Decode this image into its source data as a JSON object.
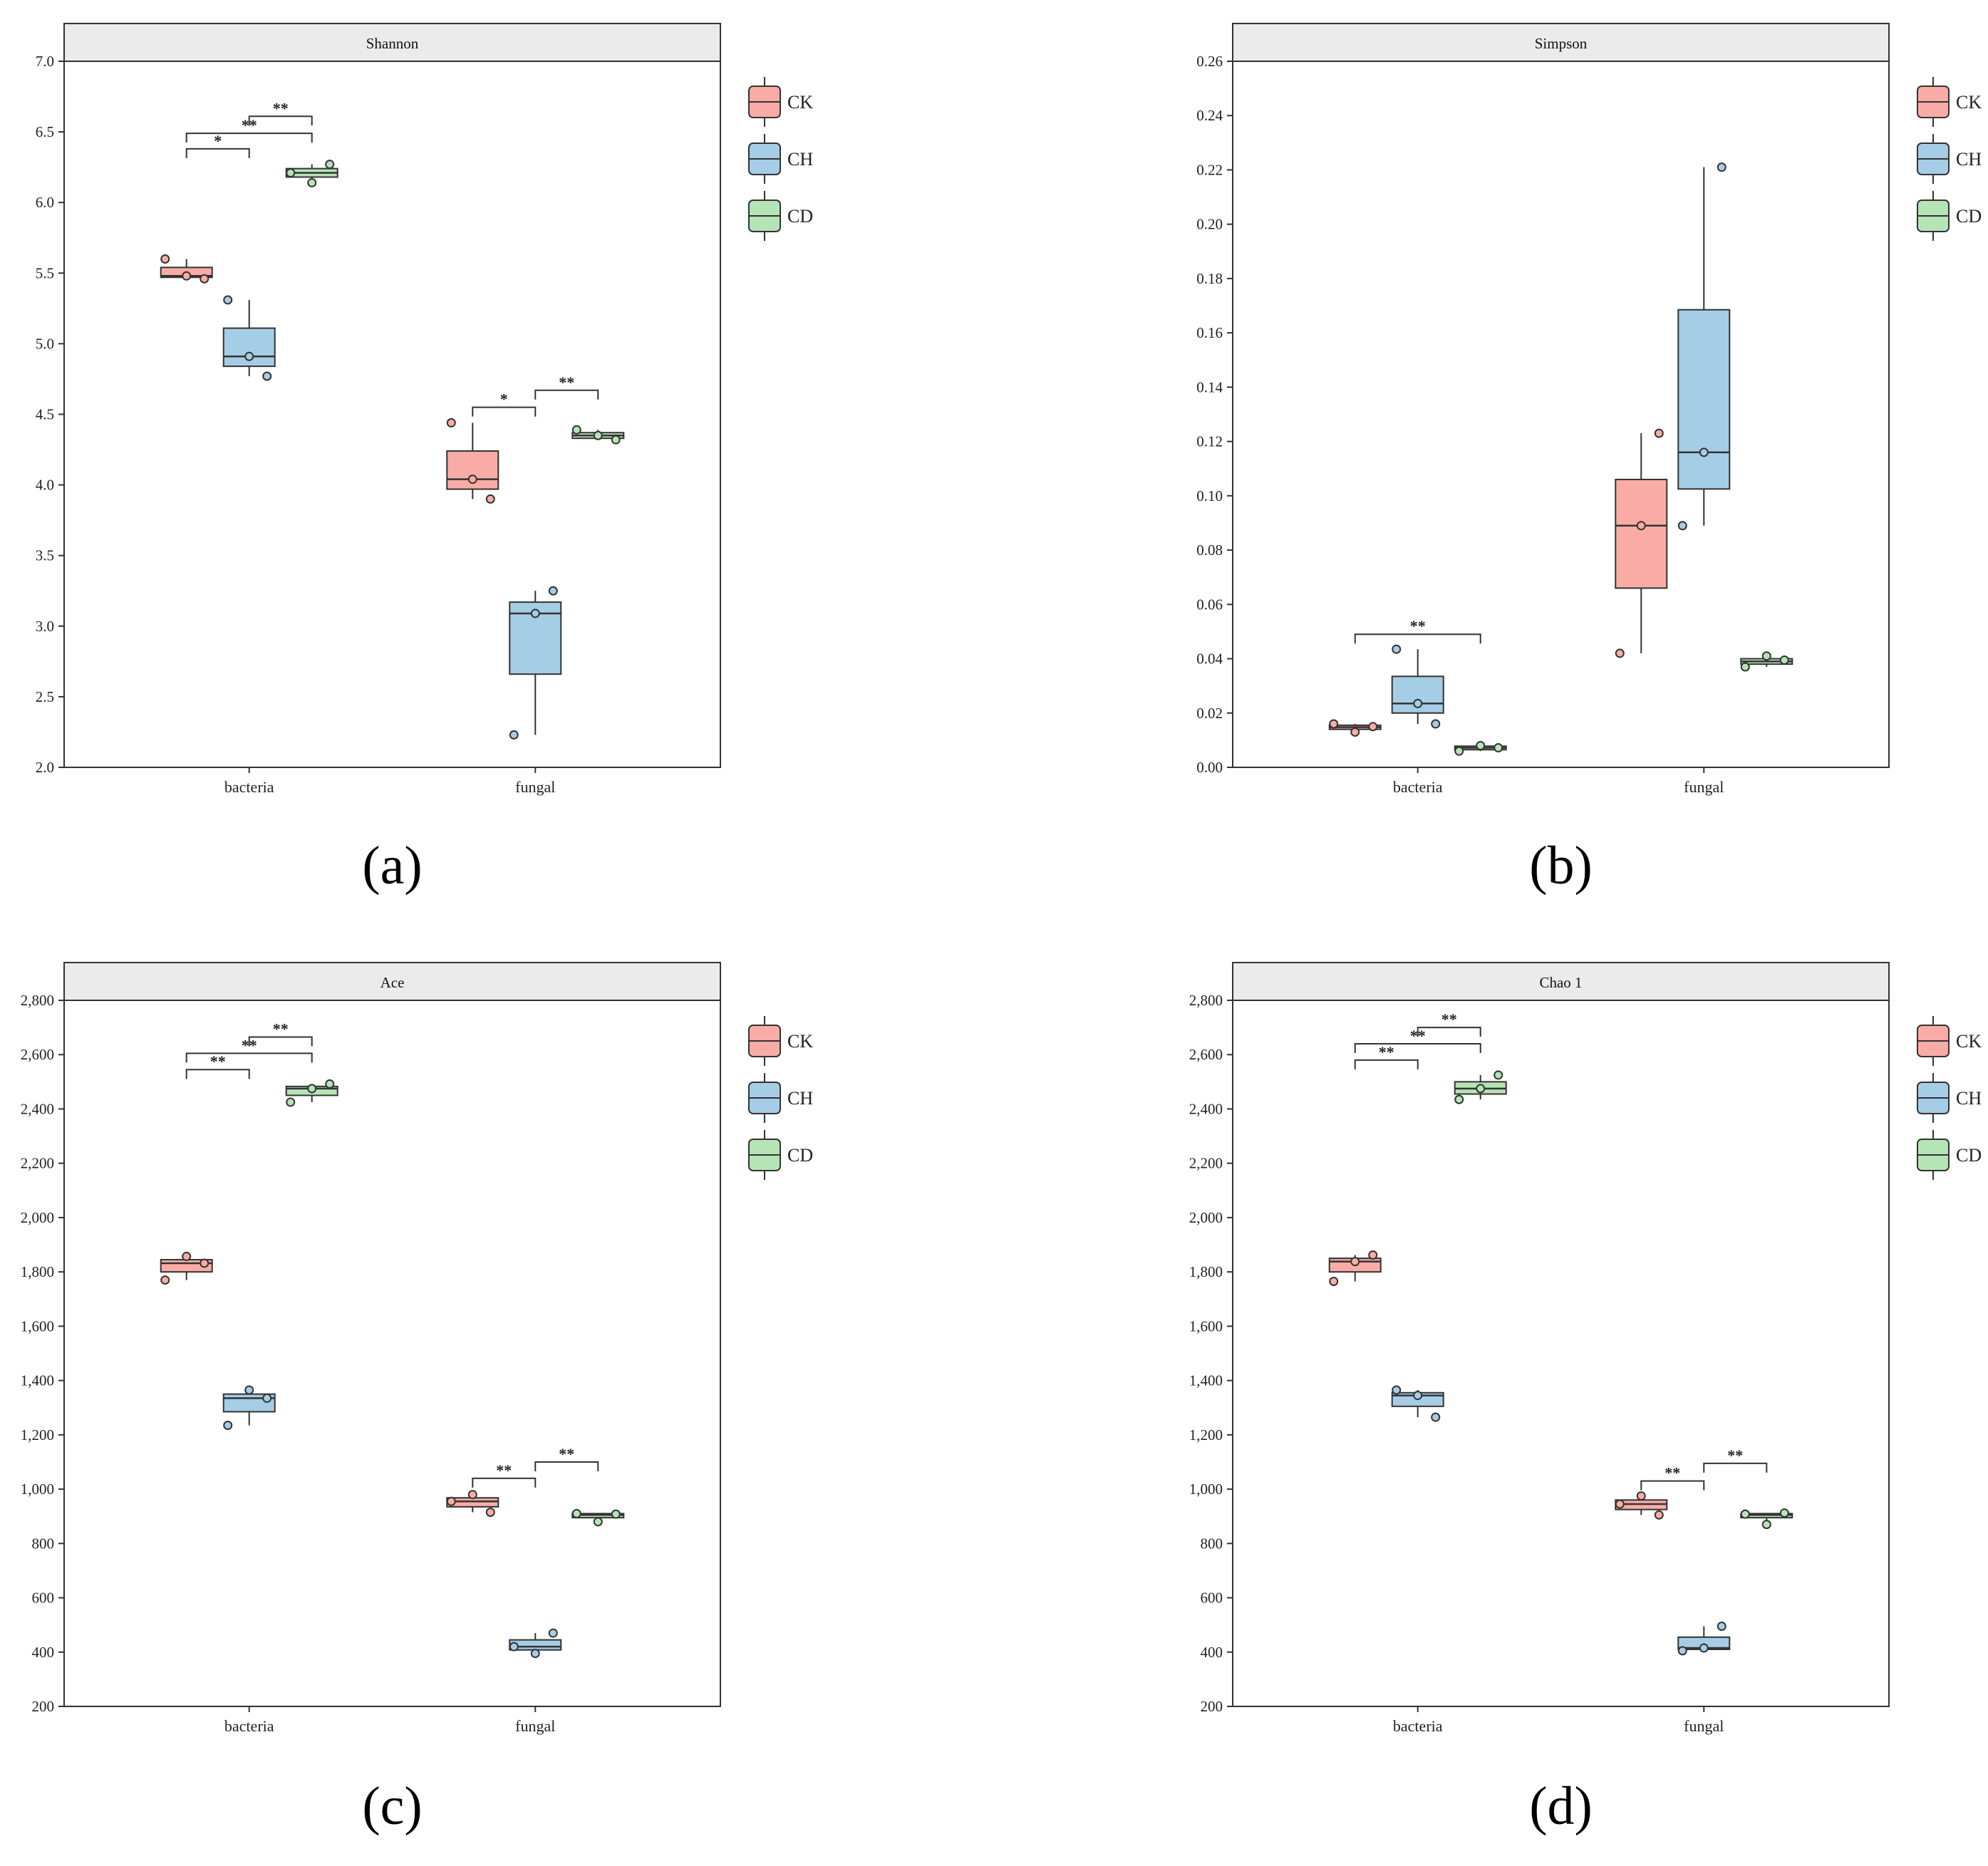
{
  "palette": {
    "CK": "#f9aca6",
    "CH": "#a6cde6",
    "CD": "#b5e5b5",
    "outline": "#333333",
    "header": "#ebebeb"
  },
  "chart_data": [
    {
      "type": "box",
      "panel_label": "(a)",
      "title": "Shannon",
      "categories": [
        "bacteria",
        "fungal"
      ],
      "ylim": [
        2.0,
        7.0
      ],
      "yticks": [
        2.0,
        2.5,
        3.0,
        3.5,
        4.0,
        4.5,
        5.0,
        5.5,
        6.0,
        6.5,
        7.0
      ],
      "ytick_labels": [
        "2.0",
        "2.5",
        "3.0",
        "3.5",
        "4.0",
        "4.5",
        "5.0",
        "5.5",
        "6.0",
        "6.5",
        "7.0"
      ],
      "legend": [
        "CK",
        "CH",
        "CD"
      ],
      "series": [
        {
          "name": "CK",
          "boxes": [
            {
              "min": 5.46,
              "q1": 5.47,
              "median": 5.48,
              "q3": 5.54,
              "max": 5.6,
              "points": [
                5.6,
                5.48,
                5.46
              ]
            },
            {
              "min": 3.9,
              "q1": 3.97,
              "median": 4.04,
              "q3": 4.24,
              "max": 4.44,
              "points": [
                4.44,
                4.04,
                3.9
              ]
            }
          ]
        },
        {
          "name": "CH",
          "boxes": [
            {
              "min": 4.77,
              "q1": 4.84,
              "median": 4.91,
              "q3": 5.11,
              "max": 5.31,
              "points": [
                5.31,
                4.91,
                4.77
              ]
            },
            {
              "min": 2.23,
              "q1": 2.66,
              "median": 3.09,
              "q3": 3.17,
              "max": 3.25,
              "points": [
                2.23,
                3.09,
                3.25
              ]
            }
          ]
        },
        {
          "name": "CD",
          "boxes": [
            {
              "min": 6.14,
              "q1": 6.18,
              "median": 6.21,
              "q3": 6.24,
              "max": 6.27,
              "points": [
                6.21,
                6.14,
                6.27
              ]
            },
            {
              "min": 4.32,
              "q1": 4.33,
              "median": 4.35,
              "q3": 4.37,
              "max": 4.39,
              "points": [
                4.39,
                4.35,
                4.32
              ]
            }
          ]
        }
      ],
      "significance": [
        {
          "category": 0,
          "from": "CK",
          "to": "CH",
          "y": 6.38,
          "label": "*"
        },
        {
          "category": 0,
          "from": "CK",
          "to": "CD",
          "y": 6.49,
          "label": "**"
        },
        {
          "category": 0,
          "from": "CH",
          "to": "CD",
          "y": 6.61,
          "label": "**"
        },
        {
          "category": 1,
          "from": "CK",
          "to": "CH",
          "y": 4.55,
          "label": "*"
        },
        {
          "category": 1,
          "from": "CH",
          "to": "CD",
          "y": 4.67,
          "label": "**"
        }
      ]
    },
    {
      "type": "box",
      "panel_label": "(b)",
      "title": "Simpson",
      "categories": [
        "bacteria",
        "fungal"
      ],
      "ylim": [
        0.0,
        0.26
      ],
      "yticks": [
        0.0,
        0.02,
        0.04,
        0.06,
        0.08,
        0.1,
        0.12,
        0.14,
        0.16,
        0.18,
        0.2,
        0.22,
        0.24,
        0.26
      ],
      "ytick_labels": [
        "0.00",
        "0.02",
        "0.04",
        "0.06",
        "0.08",
        "0.10",
        "0.12",
        "0.14",
        "0.16",
        "0.18",
        "0.20",
        "0.22",
        "0.24",
        "0.26"
      ],
      "legend": [
        "CK",
        "CH",
        "CD"
      ],
      "series": [
        {
          "name": "CK",
          "boxes": [
            {
              "min": 0.013,
              "q1": 0.014,
              "median": 0.0148,
              "q3": 0.0155,
              "max": 0.016,
              "points": [
                0.016,
                0.013,
                0.015
              ]
            },
            {
              "min": 0.042,
              "q1": 0.066,
              "median": 0.089,
              "q3": 0.106,
              "max": 0.123,
              "points": [
                0.042,
                0.089,
                0.123
              ]
            }
          ]
        },
        {
          "name": "CH",
          "boxes": [
            {
              "min": 0.016,
              "q1": 0.02,
              "median": 0.0235,
              "q3": 0.0335,
              "max": 0.0435,
              "points": [
                0.0435,
                0.0235,
                0.016
              ]
            },
            {
              "min": 0.089,
              "q1": 0.1025,
              "median": 0.116,
              "q3": 0.1685,
              "max": 0.221,
              "points": [
                0.089,
                0.116,
                0.221
              ]
            }
          ]
        },
        {
          "name": "CD",
          "boxes": [
            {
              "min": 0.006,
              "q1": 0.0065,
              "median": 0.0072,
              "q3": 0.0078,
              "max": 0.008,
              "points": [
                0.006,
                0.008,
                0.0072
              ]
            },
            {
              "min": 0.037,
              "q1": 0.038,
              "median": 0.039,
              "q3": 0.04,
              "max": 0.041,
              "points": [
                0.037,
                0.041,
                0.0395
              ]
            }
          ]
        }
      ],
      "significance": [
        {
          "category": 0,
          "from": "CK",
          "to": "CD",
          "y": 0.049,
          "label": "**"
        }
      ]
    },
    {
      "type": "box",
      "panel_label": "(c)",
      "title": "Ace",
      "categories": [
        "bacteria",
        "fungal"
      ],
      "ylim": [
        200,
        2800
      ],
      "yticks": [
        200,
        400,
        600,
        800,
        1000,
        1200,
        1400,
        1600,
        1800,
        2000,
        2200,
        2400,
        2600,
        2800
      ],
      "ytick_labels": [
        "200",
        "400",
        "600",
        "800",
        "1,000",
        "1,200",
        "1,400",
        "1,600",
        "1,800",
        "2,000",
        "2,200",
        "2,400",
        "2,600",
        "2,800"
      ],
      "legend": [
        "CK",
        "CH",
        "CD"
      ],
      "series": [
        {
          "name": "CK",
          "boxes": [
            {
              "min": 1770,
              "q1": 1800,
              "median": 1832,
              "q3": 1845,
              "max": 1857,
              "points": [
                1770,
                1857,
                1832
              ]
            },
            {
              "min": 915,
              "q1": 935,
              "median": 955,
              "q3": 968,
              "max": 980,
              "points": [
                955,
                980,
                915
              ]
            }
          ]
        },
        {
          "name": "CH",
          "boxes": [
            {
              "min": 1235,
              "q1": 1285,
              "median": 1335,
              "q3": 1350,
              "max": 1365,
              "points": [
                1235,
                1365,
                1335
              ]
            },
            {
              "min": 395,
              "q1": 408,
              "median": 420,
              "q3": 445,
              "max": 470,
              "points": [
                420,
                395,
                470
              ]
            }
          ]
        },
        {
          "name": "CD",
          "boxes": [
            {
              "min": 2425,
              "q1": 2450,
              "median": 2475,
              "q3": 2483,
              "max": 2492,
              "points": [
                2425,
                2475,
                2492
              ]
            },
            {
              "min": 880,
              "q1": 895,
              "median": 905,
              "q3": 910,
              "max": 912,
              "points": [
                910,
                880,
                908
              ]
            }
          ]
        }
      ],
      "significance": [
        {
          "category": 0,
          "from": "CK",
          "to": "CH",
          "y": 2545,
          "label": "**"
        },
        {
          "category": 0,
          "from": "CK",
          "to": "CD",
          "y": 2605,
          "label": "**"
        },
        {
          "category": 0,
          "from": "CH",
          "to": "CD",
          "y": 2665,
          "label": "**"
        },
        {
          "category": 1,
          "from": "CK",
          "to": "CH",
          "y": 1040,
          "label": "**"
        },
        {
          "category": 1,
          "from": "CH",
          "to": "CD",
          "y": 1100,
          "label": "**"
        }
      ]
    },
    {
      "type": "box",
      "panel_label": "(d)",
      "title": "Chao 1",
      "categories": [
        "bacteria",
        "fungal"
      ],
      "ylim": [
        200,
        2800
      ],
      "yticks": [
        200,
        400,
        600,
        800,
        1000,
        1200,
        1400,
        1600,
        1800,
        2000,
        2200,
        2400,
        2600,
        2800
      ],
      "ytick_labels": [
        "200",
        "400",
        "600",
        "800",
        "1,000",
        "1,200",
        "1,400",
        "1,600",
        "1,800",
        "2,000",
        "2,200",
        "2,400",
        "2,600",
        "2,800"
      ],
      "legend": [
        "CK",
        "CH",
        "CD"
      ],
      "series": [
        {
          "name": "CK",
          "boxes": [
            {
              "min": 1765,
              "q1": 1800,
              "median": 1838,
              "q3": 1850,
              "max": 1862,
              "points": [
                1765,
                1838,
                1862
              ]
            },
            {
              "min": 905,
              "q1": 925,
              "median": 945,
              "q3": 960,
              "max": 975,
              "points": [
                945,
                975,
                905
              ]
            }
          ]
        },
        {
          "name": "CH",
          "boxes": [
            {
              "min": 1265,
              "q1": 1305,
              "median": 1345,
              "q3": 1355,
              "max": 1365,
              "points": [
                1365,
                1345,
                1265
              ]
            },
            {
              "min": 405,
              "q1": 410,
              "median": 415,
              "q3": 455,
              "max": 495,
              "points": [
                405,
                415,
                495
              ]
            }
          ]
        },
        {
          "name": "CD",
          "boxes": [
            {
              "min": 2435,
              "q1": 2455,
              "median": 2475,
              "q3": 2500,
              "max": 2525,
              "points": [
                2435,
                2475,
                2525
              ]
            },
            {
              "min": 870,
              "q1": 895,
              "median": 905,
              "q3": 910,
              "max": 912,
              "points": [
                908,
                870,
                912
              ]
            }
          ]
        }
      ],
      "significance": [
        {
          "category": 0,
          "from": "CK",
          "to": "CH",
          "y": 2580,
          "label": "**"
        },
        {
          "category": 0,
          "from": "CK",
          "to": "CD",
          "y": 2640,
          "label": "**"
        },
        {
          "category": 0,
          "from": "CH",
          "to": "CD",
          "y": 2700,
          "label": "**"
        },
        {
          "category": 1,
          "from": "CK",
          "to": "CH",
          "y": 1030,
          "label": "**"
        },
        {
          "category": 1,
          "from": "CH",
          "to": "CD",
          "y": 1095,
          "label": "**"
        }
      ]
    }
  ]
}
